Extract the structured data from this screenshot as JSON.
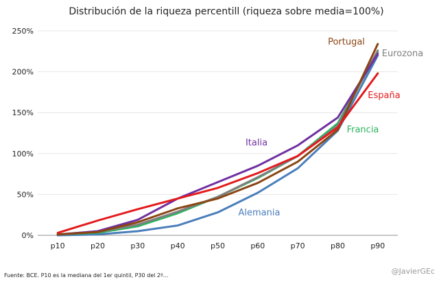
{
  "chart_data": {
    "type": "line",
    "title": "Distribución de la riqueza percentill (riqueza sobre media=100%)",
    "categories": [
      "p10",
      "p20",
      "p30",
      "p40",
      "p50",
      "p60",
      "p70",
      "p80",
      "p90"
    ],
    "ylim": [
      0,
      250
    ],
    "yticks": [
      0,
      50,
      100,
      150,
      200,
      250
    ],
    "ytick_labels": [
      "0%",
      "50%",
      "100%",
      "150%",
      "200%",
      "250%"
    ],
    "series": [
      {
        "name": "Alemania",
        "color": "#4A7EBB",
        "dashed": false,
        "values": [
          0,
          1,
          5,
          12,
          28,
          52,
          82,
          128,
          220
        ]
      },
      {
        "name": "Francia",
        "color": "#2DB35F",
        "dashed": true,
        "values": [
          1,
          3,
          11,
          27,
          47,
          70,
          97,
          137,
          224
        ]
      },
      {
        "name": "Eurozona",
        "color": "#7F7F7F",
        "dashed": false,
        "values": [
          1,
          4,
          13,
          29,
          47,
          71,
          97,
          134,
          226
        ]
      },
      {
        "name": "Italia",
        "color": "#7030A0",
        "dashed": false,
        "values": [
          1,
          5,
          19,
          45,
          65,
          85,
          110,
          144,
          222
        ]
      },
      {
        "name": "Portugal",
        "color": "#8B4513",
        "dashed": false,
        "values": [
          1,
          4,
          16,
          33,
          45,
          64,
          90,
          129,
          234
        ]
      },
      {
        "name": "España",
        "color": "#E31A1C",
        "dashed": false,
        "values": [
          3,
          18,
          32,
          45,
          58,
          76,
          97,
          132,
          198
        ]
      }
    ]
  },
  "footer": "Fuente: BCE. P10 es la mediana del 1er quintil, P30 del 2º...",
  "credit": "@JavierGEc"
}
